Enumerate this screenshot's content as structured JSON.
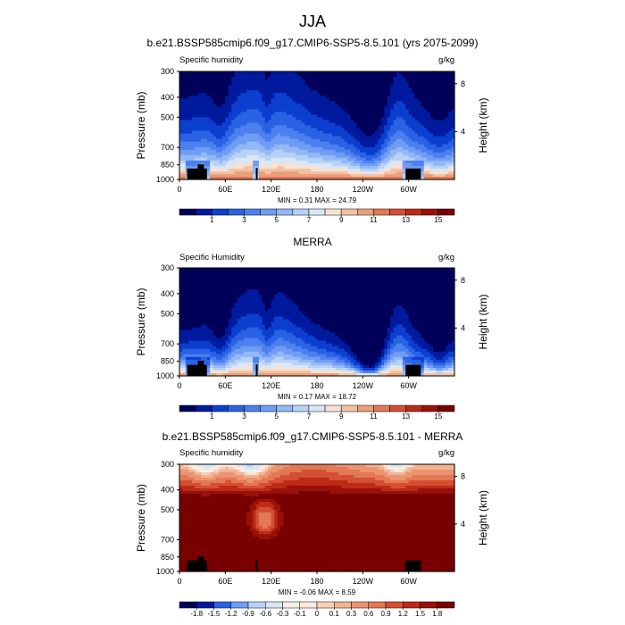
{
  "figure_title": "JJA",
  "chart_data": [
    {
      "type": "heatmap",
      "title": "b.e21.BSSP585cmip6.f09_g17.CMIP6-SSP5-8.5.101 (yrs 2075-2099)",
      "left_label": "Specific humidity",
      "right_label": "g/kg",
      "xlabel": "",
      "ylabel": "Pressure (mb)",
      "ylabel_right": "Height (km)",
      "x_ticks": [
        "0",
        "60E",
        "120E",
        "180",
        "120W",
        "60W"
      ],
      "x_tick_values": [
        0,
        60,
        120,
        180,
        240,
        300
      ],
      "xlim": [
        0,
        360
      ],
      "y_ticks": [
        "300",
        "400",
        "500",
        "700",
        "850",
        "1000"
      ],
      "y_tick_values": [
        300,
        400,
        500,
        700,
        850,
        1000
      ],
      "ylim": [
        1000,
        300
      ],
      "y_scale": "log",
      "height_ticks": [
        "8",
        "4"
      ],
      "height_tick_values": [
        8,
        4
      ],
      "stats": "MIN =   0.31   MAX =  24.79",
      "min": 0.31,
      "max": 24.79,
      "colorbar_labels": [
        "1",
        "3",
        "5",
        "7",
        "9",
        "11",
        "13",
        "15"
      ],
      "colorbar_levels": [
        0,
        1,
        2,
        3,
        4,
        5,
        6,
        7,
        8,
        9,
        10,
        11,
        12,
        13,
        14,
        15,
        16
      ],
      "surface_bq": 2.6,
      "surface_scale": 13,
      "qh_scale": 1.0,
      "units_mode": "field"
    },
    {
      "type": "heatmap",
      "title": "MERRA",
      "left_label": "Specific Humidity",
      "right_label": "g/kg",
      "xlabel": "",
      "ylabel": "Pressure (mb)",
      "ylabel_right": "Height (km)",
      "x_ticks": [
        "0",
        "60E",
        "120E",
        "180",
        "120W",
        "60W"
      ],
      "x_tick_values": [
        0,
        60,
        120,
        180,
        240,
        300
      ],
      "xlim": [
        0,
        360
      ],
      "y_ticks": [
        "300",
        "400",
        "500",
        "700",
        "850",
        "1000"
      ],
      "y_tick_values": [
        300,
        400,
        500,
        700,
        850,
        1000
      ],
      "ylim": [
        1000,
        300
      ],
      "y_scale": "log",
      "height_ticks": [
        "8",
        "4"
      ],
      "height_tick_values": [
        8,
        4
      ],
      "stats": "MIN =   0.17   MAX =  18.72",
      "min": 0.17,
      "max": 18.72,
      "colorbar_labels": [
        "1",
        "3",
        "5",
        "7",
        "9",
        "11",
        "13",
        "15"
      ],
      "colorbar_levels": [
        0,
        1,
        2,
        3,
        4,
        5,
        6,
        7,
        8,
        9,
        10,
        11,
        12,
        13,
        14,
        15,
        16
      ],
      "surface_bq": 1.5,
      "surface_scale": 12,
      "qh_scale": 1.0,
      "units_mode": "field"
    },
    {
      "type": "heatmap",
      "title": "b.e21.BSSP585cmip6.f09_g17.CMIP6-SSP5-8.5.101 - MERRA",
      "left_label": "Specific humidity",
      "right_label": "g/kg",
      "xlabel": "",
      "ylabel": "Pressure (mb)",
      "ylabel_right": "Height (km)",
      "x_ticks": [
        "0",
        "60E",
        "120E",
        "180",
        "120W",
        "60W"
      ],
      "x_tick_values": [
        0,
        60,
        120,
        180,
        240,
        300
      ],
      "xlim": [
        0,
        360
      ],
      "y_ticks": [
        "300",
        "400",
        "500",
        "700",
        "850",
        "1000"
      ],
      "y_tick_values": [
        300,
        400,
        500,
        700,
        850,
        1000
      ],
      "ylim": [
        1000,
        300
      ],
      "y_scale": "log",
      "height_ticks": [
        "8",
        "4"
      ],
      "height_tick_values": [
        8,
        4
      ],
      "stats": "MIN =  -0.06   MAX =   8.59",
      "min": -0.06,
      "max": 8.59,
      "colorbar_labels": [
        "-1.8",
        "-1.5",
        "-1.2",
        "-0.9",
        "-0.6",
        "-0.3",
        "-0.1",
        "0",
        "0.1",
        "0.3",
        "0.6",
        "0.9",
        "1.2",
        "1.5",
        "1.8"
      ],
      "colorbar_levels": [
        -1.8,
        -1.5,
        -1.2,
        -0.9,
        -0.6,
        -0.3,
        -0.1,
        0,
        0.1,
        0.3,
        0.6,
        0.9,
        1.2,
        1.5,
        1.8
      ],
      "units_mode": "diff"
    }
  ],
  "palette": [
    "#00005a",
    "#001a9e",
    "#0b3fcf",
    "#2a62e4",
    "#4c80ef",
    "#6f9cf4",
    "#93b8f6",
    "#b7d1f7",
    "#d9e6f6",
    "#f6e2d3",
    "#f2c2a5",
    "#ec9f7b",
    "#e27954",
    "#d54f33",
    "#bd2a17",
    "#9a110a",
    "#780000"
  ],
  "topography_lon": [
    [
      10,
      36
    ],
    [
      100,
      102
    ],
    [
      296,
      316
    ]
  ]
}
